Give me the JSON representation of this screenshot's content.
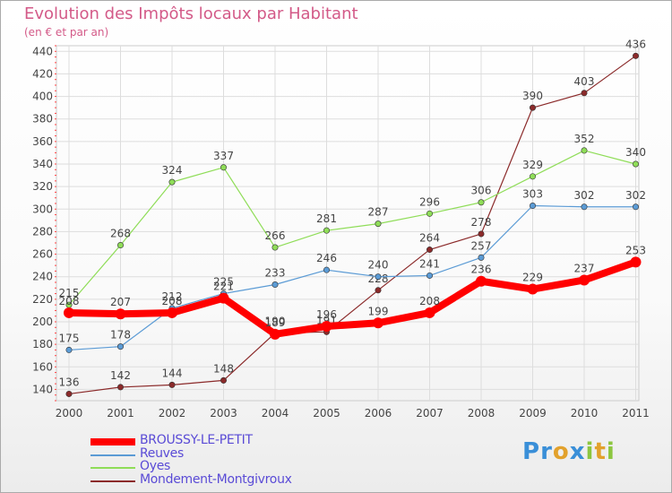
{
  "header": {
    "title": "Evolution des Impôts locaux par Habitant",
    "subtitle": "(en € et par an)"
  },
  "chart_data": {
    "type": "line",
    "title": "Evolution des Impôts locaux par Habitant",
    "subtitle": "(en € et par an)",
    "xlabel": "",
    "ylabel": "",
    "categories": [
      "2000",
      "2001",
      "2002",
      "2003",
      "2004",
      "2005",
      "2006",
      "2007",
      "2008",
      "2009",
      "2010",
      "2011"
    ],
    "ylim": [
      130,
      445
    ],
    "yticks": [
      140,
      160,
      180,
      200,
      220,
      240,
      260,
      280,
      300,
      320,
      340,
      360,
      380,
      400,
      420,
      440
    ],
    "grid": true,
    "legend_position": "bottom-left",
    "series": [
      {
        "name": "Mondement-Montgivroux",
        "color": "#8b2a2a",
        "values": [
          136,
          142,
          144,
          148,
          190,
          191,
          228,
          264,
          278,
          390,
          403,
          436
        ]
      },
      {
        "name": "Reuves",
        "color": "#5b9bd5",
        "values": [
          175,
          178,
          212,
          225,
          233,
          246,
          240,
          241,
          257,
          303,
          302,
          302
        ]
      },
      {
        "name": "Oyes",
        "color": "#8fdd58",
        "values": [
          215,
          268,
          324,
          337,
          266,
          281,
          287,
          296,
          306,
          329,
          352,
          340
        ]
      },
      {
        "name": "BROUSSY-LE-PETIT",
        "color": "#ff0000",
        "values": [
          208,
          207,
          208,
          221,
          189,
          196,
          199,
          208,
          236,
          229,
          237,
          253
        ]
      }
    ]
  },
  "legend": {
    "items": [
      {
        "label": "BROUSSY-LE-PETIT",
        "color": "#ff0000"
      },
      {
        "label": "Reuves",
        "color": "#5b9bd5"
      },
      {
        "label": "Oyes",
        "color": "#8fdd58"
      },
      {
        "label": "Mondement-Montgivroux",
        "color": "#8b2a2a"
      }
    ]
  },
  "logo": {
    "text": "Proxiti"
  }
}
